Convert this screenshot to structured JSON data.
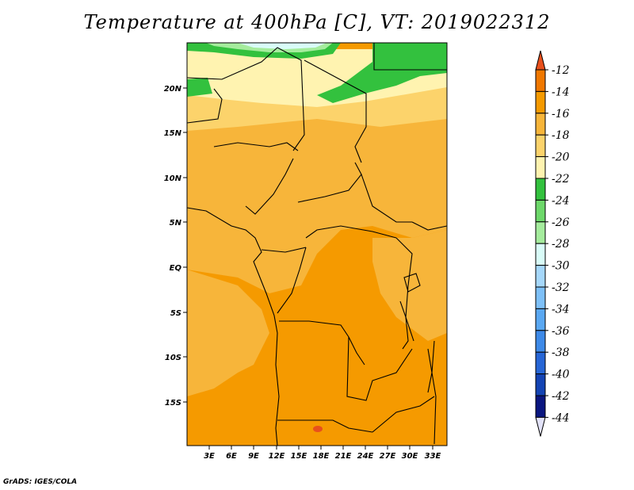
{
  "title": "Temperature at 400hPa [C], VT: 2019022312",
  "credit": "GrADS: IGES/COLA",
  "map": {
    "lon_ticks": [
      "3E",
      "6E",
      "9E",
      "12E",
      "15E",
      "18E",
      "21E",
      "24E",
      "27E",
      "30E",
      "33E"
    ],
    "lat_ticks": [
      "20N",
      "15N",
      "10N",
      "5N",
      "EQ",
      "5S",
      "10S",
      "15S"
    ]
  },
  "colorbar": {
    "levels": [
      "-12",
      "-14",
      "-16",
      "-18",
      "-20",
      "-22",
      "-24",
      "-26",
      "-28",
      "-30",
      "-32",
      "-34",
      "-36",
      "-38",
      "-40",
      "-42",
      "-44"
    ],
    "colors": [
      "#e8501c",
      "#f07800",
      "#f59a00",
      "#f7b53a",
      "#fcd36b",
      "#fff3b0",
      "#33c13e",
      "#6dd86a",
      "#a5ec9d",
      "#d9fcf8",
      "#a6d8fb",
      "#7ec0f8",
      "#5aa8f2",
      "#3e8ae8",
      "#2766d6",
      "#1444b4",
      "#0a1680",
      "#e2e2f8"
    ]
  },
  "regions": {
    "cold_north": "#d9fcf8",
    "very_cool_north": "#a5ec9d",
    "cool_band": "#33c13e",
    "mild_band": "#fff3b0",
    "mid_band": "#fcd36b",
    "central": "#f7b53a",
    "south": "#f59a00",
    "hot_spot": "#e8501c"
  }
}
